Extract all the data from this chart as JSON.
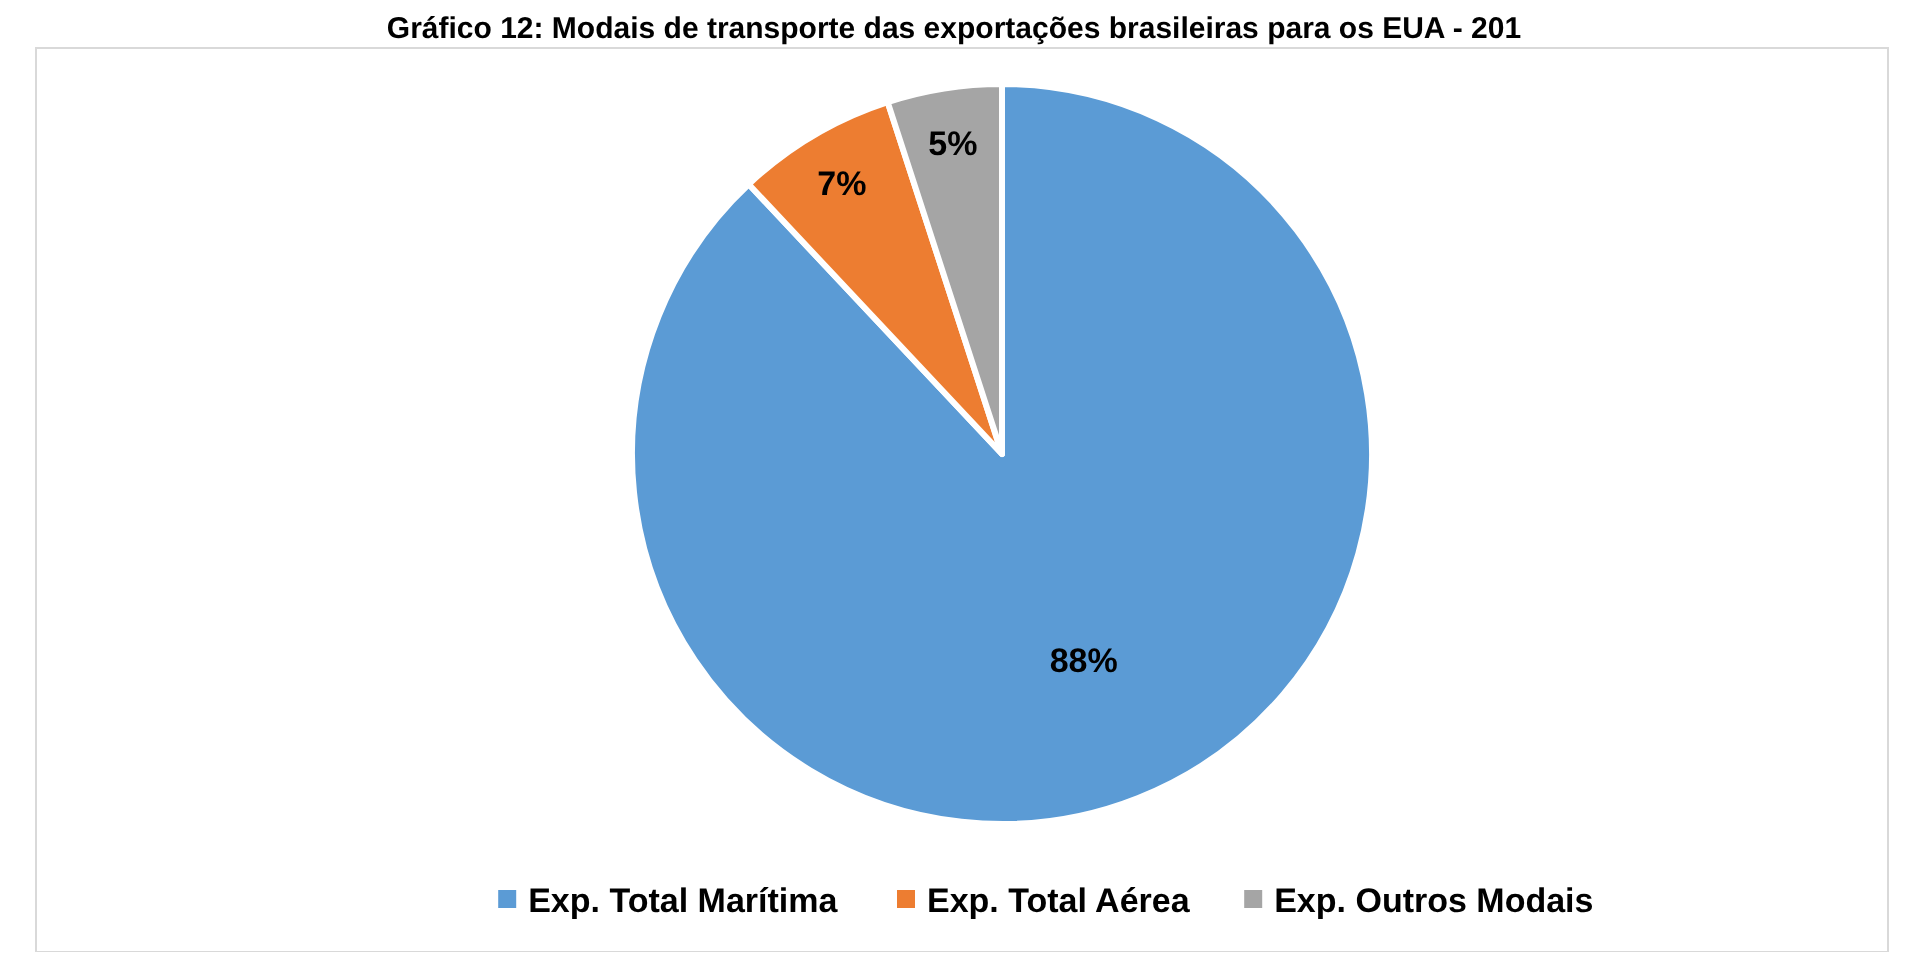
{
  "chart_data": {
    "type": "pie",
    "title": "Gráfico 12: Modais de transporte das exportações brasileiras para os EUA - 201",
    "categories": [
      "Exp. Total Marítima",
      "Exp. Total Aérea",
      "Exp. Outros Modais"
    ],
    "values": [
      88,
      7,
      5
    ],
    "colors": [
      "#5b9bd5",
      "#ed7d31",
      "#a5a5a5"
    ],
    "value_labels": [
      "88%",
      "7%",
      "5%"
    ],
    "legend": "bottom"
  }
}
